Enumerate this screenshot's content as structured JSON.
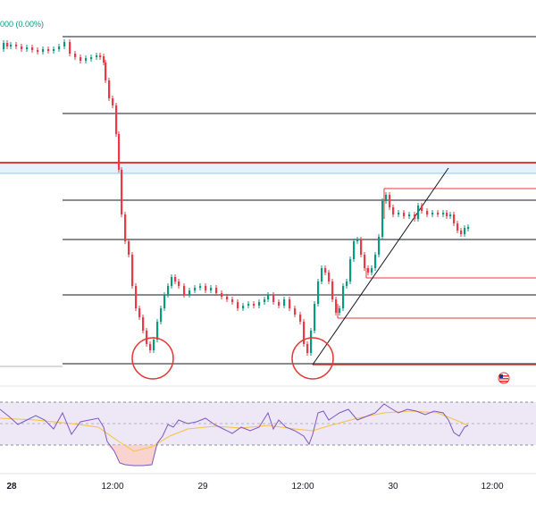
{
  "header": {
    "price_change": "000 (0.00%)"
  },
  "time_axis": {
    "labels": [
      "28",
      "12:00",
      "29",
      "12:00",
      "30",
      "12:00"
    ]
  },
  "colors": {
    "up": "#089981",
    "down": "#f23645",
    "level_line": "#131722",
    "red_line": "#e53935",
    "band_fill": "#e3f2fd",
    "rsi_line": "#7e57c2",
    "rsi_ma": "#f5c242",
    "rsi_band": "#ede7f6"
  },
  "icons": {
    "flag": "us-flag-icon"
  },
  "chart_data": {
    "type": "candlestick",
    "title": "",
    "panes": [
      "price",
      "rsi"
    ],
    "x_ticks": [
      "28",
      "12:00",
      "29",
      "12:00",
      "30",
      "12:00"
    ],
    "price_close_path": [
      [
        0,
        55
      ],
      [
        4,
        48
      ],
      [
        8,
        52
      ],
      [
        12,
        50
      ],
      [
        18,
        52
      ],
      [
        24,
        55
      ],
      [
        30,
        53
      ],
      [
        36,
        56
      ],
      [
        42,
        58
      ],
      [
        48,
        55
      ],
      [
        54,
        57
      ],
      [
        60,
        55
      ],
      [
        66,
        52
      ],
      [
        72,
        47
      ],
      [
        78,
        60
      ],
      [
        84,
        64
      ],
      [
        90,
        68
      ],
      [
        96,
        65
      ],
      [
        102,
        64
      ],
      [
        108,
        62
      ],
      [
        112,
        63
      ],
      [
        116,
        70
      ],
      [
        118,
        90
      ],
      [
        122,
        110
      ],
      [
        126,
        118
      ],
      [
        130,
        150
      ],
      [
        133,
        190
      ],
      [
        136,
        240
      ],
      [
        140,
        270
      ],
      [
        144,
        285
      ],
      [
        148,
        320
      ],
      [
        152,
        345
      ],
      [
        156,
        355
      ],
      [
        160,
        370
      ],
      [
        164,
        385
      ],
      [
        168,
        392
      ],
      [
        172,
        380
      ],
      [
        176,
        360
      ],
      [
        180,
        345
      ],
      [
        184,
        330
      ],
      [
        188,
        320
      ],
      [
        192,
        310
      ],
      [
        196,
        315
      ],
      [
        200,
        320
      ],
      [
        206,
        330
      ],
      [
        212,
        325
      ],
      [
        218,
        322
      ],
      [
        224,
        320
      ],
      [
        230,
        325
      ],
      [
        236,
        322
      ],
      [
        242,
        328
      ],
      [
        248,
        332
      ],
      [
        254,
        335
      ],
      [
        260,
        338
      ],
      [
        266,
        345
      ],
      [
        272,
        342
      ],
      [
        278,
        340
      ],
      [
        284,
        342
      ],
      [
        290,
        338
      ],
      [
        296,
        335
      ],
      [
        300,
        330
      ],
      [
        306,
        338
      ],
      [
        312,
        342
      ],
      [
        318,
        335
      ],
      [
        324,
        345
      ],
      [
        330,
        352
      ],
      [
        336,
        360
      ],
      [
        340,
        385
      ],
      [
        344,
        395
      ],
      [
        348,
        370
      ],
      [
        352,
        340
      ],
      [
        356,
        315
      ],
      [
        360,
        300
      ],
      [
        364,
        305
      ],
      [
        368,
        315
      ],
      [
        372,
        335
      ],
      [
        376,
        350
      ],
      [
        380,
        345
      ],
      [
        384,
        320
      ],
      [
        388,
        315
      ],
      [
        392,
        290
      ],
      [
        396,
        270
      ],
      [
        400,
        268
      ],
      [
        404,
        285
      ],
      [
        408,
        300
      ],
      [
        412,
        305
      ],
      [
        416,
        300
      ],
      [
        420,
        285
      ],
      [
        424,
        265
      ],
      [
        428,
        225
      ],
      [
        432,
        218
      ],
      [
        436,
        232
      ],
      [
        440,
        240
      ],
      [
        446,
        238
      ],
      [
        452,
        242
      ],
      [
        458,
        240
      ],
      [
        464,
        245
      ],
      [
        468,
        230
      ],
      [
        472,
        236
      ],
      [
        478,
        240
      ],
      [
        484,
        238
      ],
      [
        490,
        240
      ],
      [
        496,
        238
      ],
      [
        500,
        242
      ],
      [
        504,
        240
      ],
      [
        508,
        250
      ],
      [
        512,
        258
      ],
      [
        516,
        262
      ],
      [
        520,
        255
      ],
      [
        524,
        254
      ]
    ],
    "rsi_path": [
      [
        0,
        458
      ],
      [
        10,
        466
      ],
      [
        20,
        475
      ],
      [
        30,
        470
      ],
      [
        40,
        465
      ],
      [
        50,
        470
      ],
      [
        60,
        480
      ],
      [
        70,
        462
      ],
      [
        80,
        486
      ],
      [
        90,
        472
      ],
      [
        100,
        470
      ],
      [
        110,
        468
      ],
      [
        116,
        478
      ],
      [
        120,
        494
      ],
      [
        128,
        505
      ],
      [
        134,
        518
      ],
      [
        140,
        520
      ],
      [
        150,
        521
      ],
      [
        160,
        521
      ],
      [
        170,
        520
      ],
      [
        176,
        496
      ],
      [
        182,
        488
      ],
      [
        188,
        475
      ],
      [
        194,
        478
      ],
      [
        200,
        470
      ],
      [
        210,
        474
      ],
      [
        220,
        472
      ],
      [
        230,
        468
      ],
      [
        240,
        475
      ],
      [
        250,
        480
      ],
      [
        260,
        485
      ],
      [
        270,
        478
      ],
      [
        280,
        482
      ],
      [
        290,
        478
      ],
      [
        300,
        462
      ],
      [
        306,
        480
      ],
      [
        312,
        470
      ],
      [
        320,
        478
      ],
      [
        330,
        482
      ],
      [
        340,
        488
      ],
      [
        346,
        497
      ],
      [
        350,
        486
      ],
      [
        356,
        462
      ],
      [
        362,
        460
      ],
      [
        368,
        470
      ],
      [
        374,
        466
      ],
      [
        380,
        462
      ],
      [
        390,
        458
      ],
      [
        400,
        470
      ],
      [
        410,
        466
      ],
      [
        420,
        462
      ],
      [
        430,
        452
      ],
      [
        436,
        456
      ],
      [
        446,
        462
      ],
      [
        456,
        458
      ],
      [
        466,
        460
      ],
      [
        476,
        464
      ],
      [
        486,
        460
      ],
      [
        496,
        462
      ],
      [
        502,
        470
      ],
      [
        508,
        484
      ],
      [
        514,
        488
      ],
      [
        520,
        478
      ],
      [
        524,
        476
      ]
    ],
    "rsi_ma_path": [
      [
        0,
        468
      ],
      [
        40,
        470
      ],
      [
        80,
        474
      ],
      [
        110,
        478
      ],
      [
        130,
        492
      ],
      [
        150,
        505
      ],
      [
        170,
        500
      ],
      [
        190,
        488
      ],
      [
        210,
        480
      ],
      [
        240,
        477
      ],
      [
        270,
        479
      ],
      [
        300,
        476
      ],
      [
        330,
        480
      ],
      [
        350,
        482
      ],
      [
        370,
        476
      ],
      [
        400,
        468
      ],
      [
        430,
        462
      ],
      [
        460,
        460
      ],
      [
        490,
        462
      ],
      [
        510,
        470
      ],
      [
        524,
        476
      ]
    ],
    "grid": false,
    "legend": "none"
  }
}
